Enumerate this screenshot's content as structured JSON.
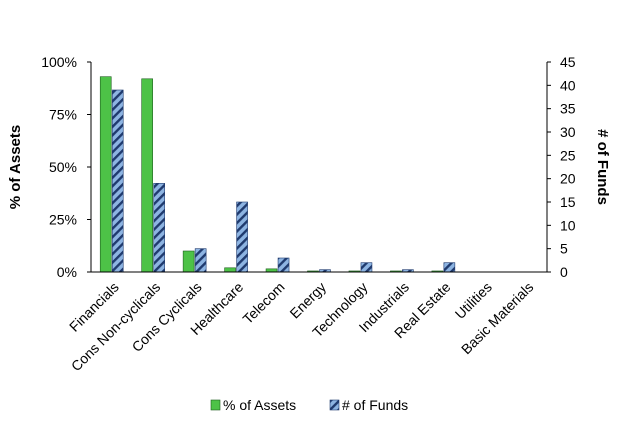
{
  "chart_data": {
    "type": "bar",
    "categories": [
      "Financials",
      "Cons Non-cyclicals",
      "Cons Cyclicals",
      "Healthcare",
      "Telecom",
      "Energy",
      "Technology",
      "Industrials",
      "Real Estate",
      "Utilities",
      "Basic Materials"
    ],
    "series": [
      {
        "name": "% of Assets",
        "axis": "left",
        "color": "#4dc247",
        "pattern": "solid",
        "values": [
          93,
          92,
          10,
          2,
          1.5,
          0.5,
          0.5,
          0.5,
          0.5,
          0,
          0
        ]
      },
      {
        "name": "# of Funds",
        "axis": "right",
        "color": "#8db4e2",
        "pattern": "diagonal-hatch",
        "values": [
          39,
          19,
          5,
          15,
          3,
          0.5,
          2,
          0.5,
          2,
          0,
          0
        ]
      }
    ],
    "left_axis": {
      "label": "% of Assets",
      "min": 0,
      "max": 100,
      "ticks": [
        {
          "value": 0,
          "label": "0%"
        },
        {
          "value": 25,
          "label": "25%"
        },
        {
          "value": 50,
          "label": "50%"
        },
        {
          "value": 75,
          "label": "75%"
        },
        {
          "value": 100,
          "label": "100%"
        }
      ]
    },
    "right_axis": {
      "label": "# of Funds",
      "min": 0,
      "max": 45,
      "ticks": [
        {
          "value": 0,
          "label": "0"
        },
        {
          "value": 5,
          "label": "5"
        },
        {
          "value": 10,
          "label": "10"
        },
        {
          "value": 15,
          "label": "15"
        },
        {
          "value": 20,
          "label": "20"
        },
        {
          "value": 25,
          "label": "25"
        },
        {
          "value": 30,
          "label": "30"
        },
        {
          "value": 35,
          "label": "35"
        },
        {
          "value": 40,
          "label": "40"
        },
        {
          "value": 45,
          "label": "45"
        }
      ]
    },
    "grid": false,
    "legend_position": "bottom"
  }
}
